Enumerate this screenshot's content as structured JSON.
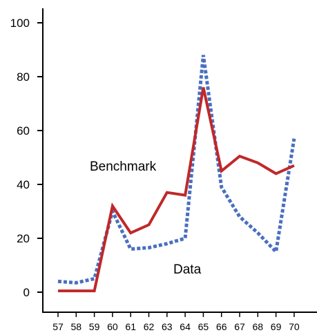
{
  "chart_data": {
    "type": "line",
    "x": [
      57,
      58,
      59,
      60,
      61,
      62,
      63,
      64,
      65,
      66,
      67,
      68,
      69,
      70
    ],
    "xticks": [
      "57",
      "58",
      "59",
      "60",
      "61",
      "62",
      "63",
      "64",
      "65",
      "66",
      "67",
      "68",
      "69",
      "70"
    ],
    "yticks": [
      "0",
      "20",
      "40",
      "60",
      "80",
      "100"
    ],
    "ylim": [
      -3,
      105
    ],
    "xlim": [
      56.2,
      70.7
    ],
    "grid": false,
    "legend": "none",
    "series": [
      {
        "name": "Benchmark",
        "color": "#c0282a",
        "style": "solid",
        "values": [
          0.5,
          0.5,
          0.5,
          32,
          22,
          25,
          37,
          36,
          76,
          45,
          50.5,
          48,
          44,
          47
        ]
      },
      {
        "name": "Data",
        "color": "#4a6fc0",
        "style": "dotted",
        "values": [
          4,
          3.5,
          5,
          30,
          16,
          16.5,
          18,
          20,
          88,
          39,
          28,
          22,
          15,
          57
        ]
      }
    ]
  }
}
